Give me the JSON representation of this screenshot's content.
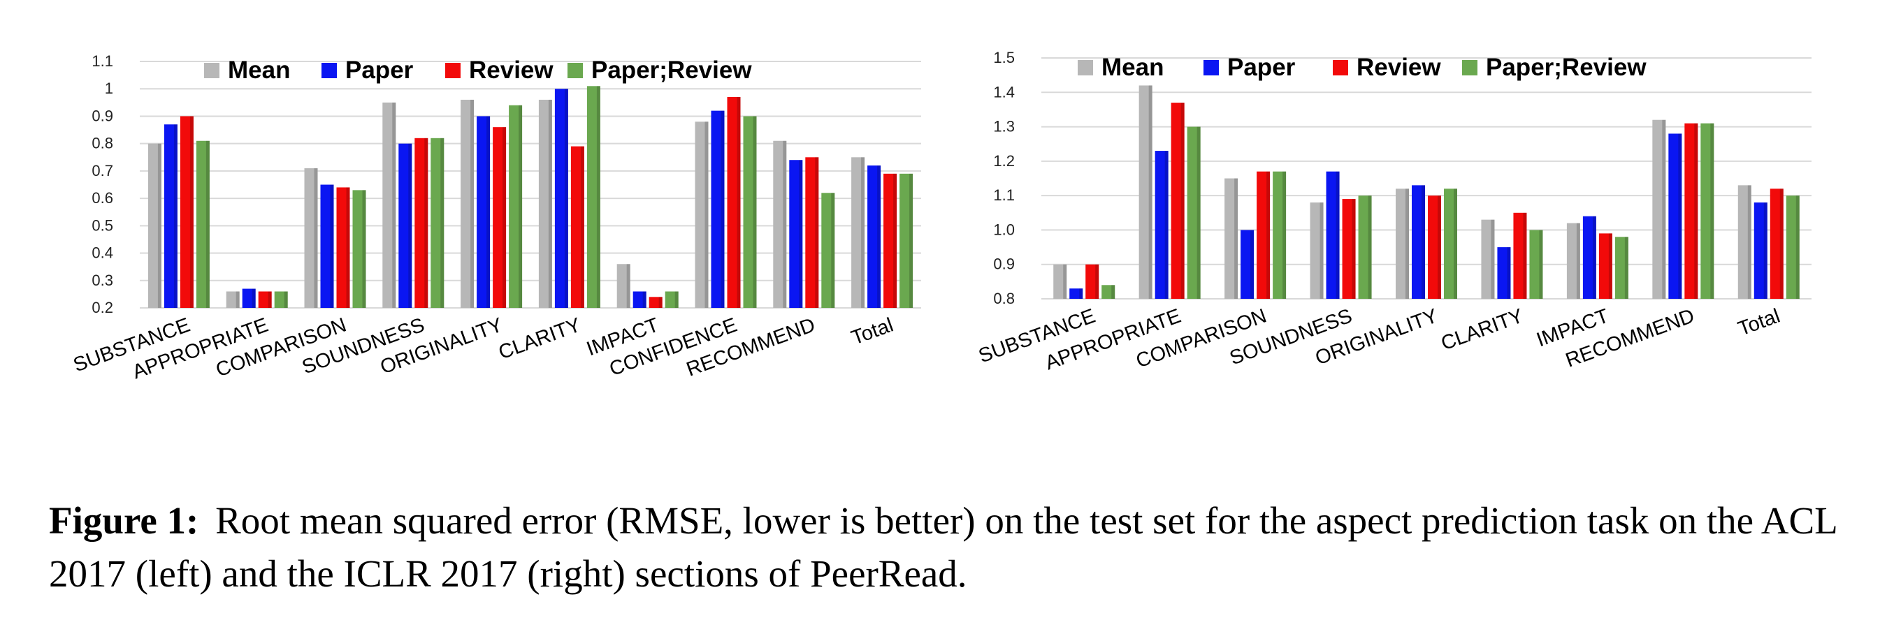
{
  "colors": {
    "Mean": "#b7b7b7",
    "Paper": "#0a16f2",
    "Review": "#f20a0a",
    "Paper;Review": "#6aa84f",
    "grid": "#d9d9d9"
  },
  "chart_data": [
    {
      "type": "bar",
      "categories": [
        "SUBSTANCE",
        "APPROPRIATE",
        "COMPARISON",
        "SOUNDNESS",
        "ORIGINALITY",
        "CLARITY",
        "IMPACT",
        "CONFIDENCE",
        "RECOMMEND",
        "Total"
      ],
      "series": [
        {
          "name": "Mean",
          "values": [
            0.8,
            0.26,
            0.71,
            0.95,
            0.96,
            0.96,
            0.36,
            0.88,
            0.81,
            0.75
          ]
        },
        {
          "name": "Paper",
          "values": [
            0.87,
            0.27,
            0.65,
            0.8,
            0.9,
            1.0,
            0.26,
            0.92,
            0.74,
            0.72
          ]
        },
        {
          "name": "Review",
          "values": [
            0.9,
            0.26,
            0.64,
            0.82,
            0.86,
            0.79,
            0.24,
            0.97,
            0.75,
            0.69
          ]
        },
        {
          "name": "Paper;Review",
          "values": [
            0.81,
            0.26,
            0.63,
            0.82,
            0.94,
            1.01,
            0.26,
            0.9,
            0.62,
            0.69
          ]
        }
      ],
      "yticks": [
        "0.2",
        "0.3",
        "0.4",
        "0.5",
        "0.6",
        "0.7",
        "0.8",
        "0.9",
        "1",
        "1.1"
      ],
      "ylim": [
        0.2,
        1.1
      ],
      "legend": [
        "Mean",
        "Paper",
        "Review",
        "Paper;Review"
      ],
      "legend_position": "top",
      "grid": true
    },
    {
      "type": "bar",
      "categories": [
        "SUBSTANCE",
        "APPROPRIATE",
        "COMPARISON",
        "SOUNDNESS",
        "ORIGINALITY",
        "CLARITY",
        "IMPACT",
        "RECOMMEND",
        "Total"
      ],
      "series": [
        {
          "name": "Mean",
          "values": [
            0.9,
            1.42,
            1.15,
            1.08,
            1.12,
            1.03,
            1.02,
            1.32,
            1.13
          ]
        },
        {
          "name": "Paper",
          "values": [
            0.83,
            1.23,
            1.0,
            1.17,
            1.13,
            0.95,
            1.04,
            1.28,
            1.08
          ]
        },
        {
          "name": "Review",
          "values": [
            0.9,
            1.37,
            1.17,
            1.09,
            1.1,
            1.05,
            0.99,
            1.31,
            1.12
          ]
        },
        {
          "name": "Paper;Review",
          "values": [
            0.84,
            1.3,
            1.17,
            1.1,
            1.12,
            1.0,
            0.98,
            1.31,
            1.1
          ]
        }
      ],
      "yticks": [
        "0.8",
        "0.9",
        "1.0",
        "1.1",
        "1.2",
        "1.3",
        "1.4",
        "1.5"
      ],
      "ylim": [
        0.8,
        1.5
      ],
      "legend": [
        "Mean",
        "Paper",
        "Review",
        "Paper;Review"
      ],
      "legend_position": "top",
      "grid": true
    }
  ],
  "caption": {
    "label": "Figure 1:",
    "text": "Root mean squared error (RMSE, lower is better) on the test set for the aspect prediction task on the ACL 2017 (left) and the ICLR 2017 (right) sections of PeerRead."
  }
}
